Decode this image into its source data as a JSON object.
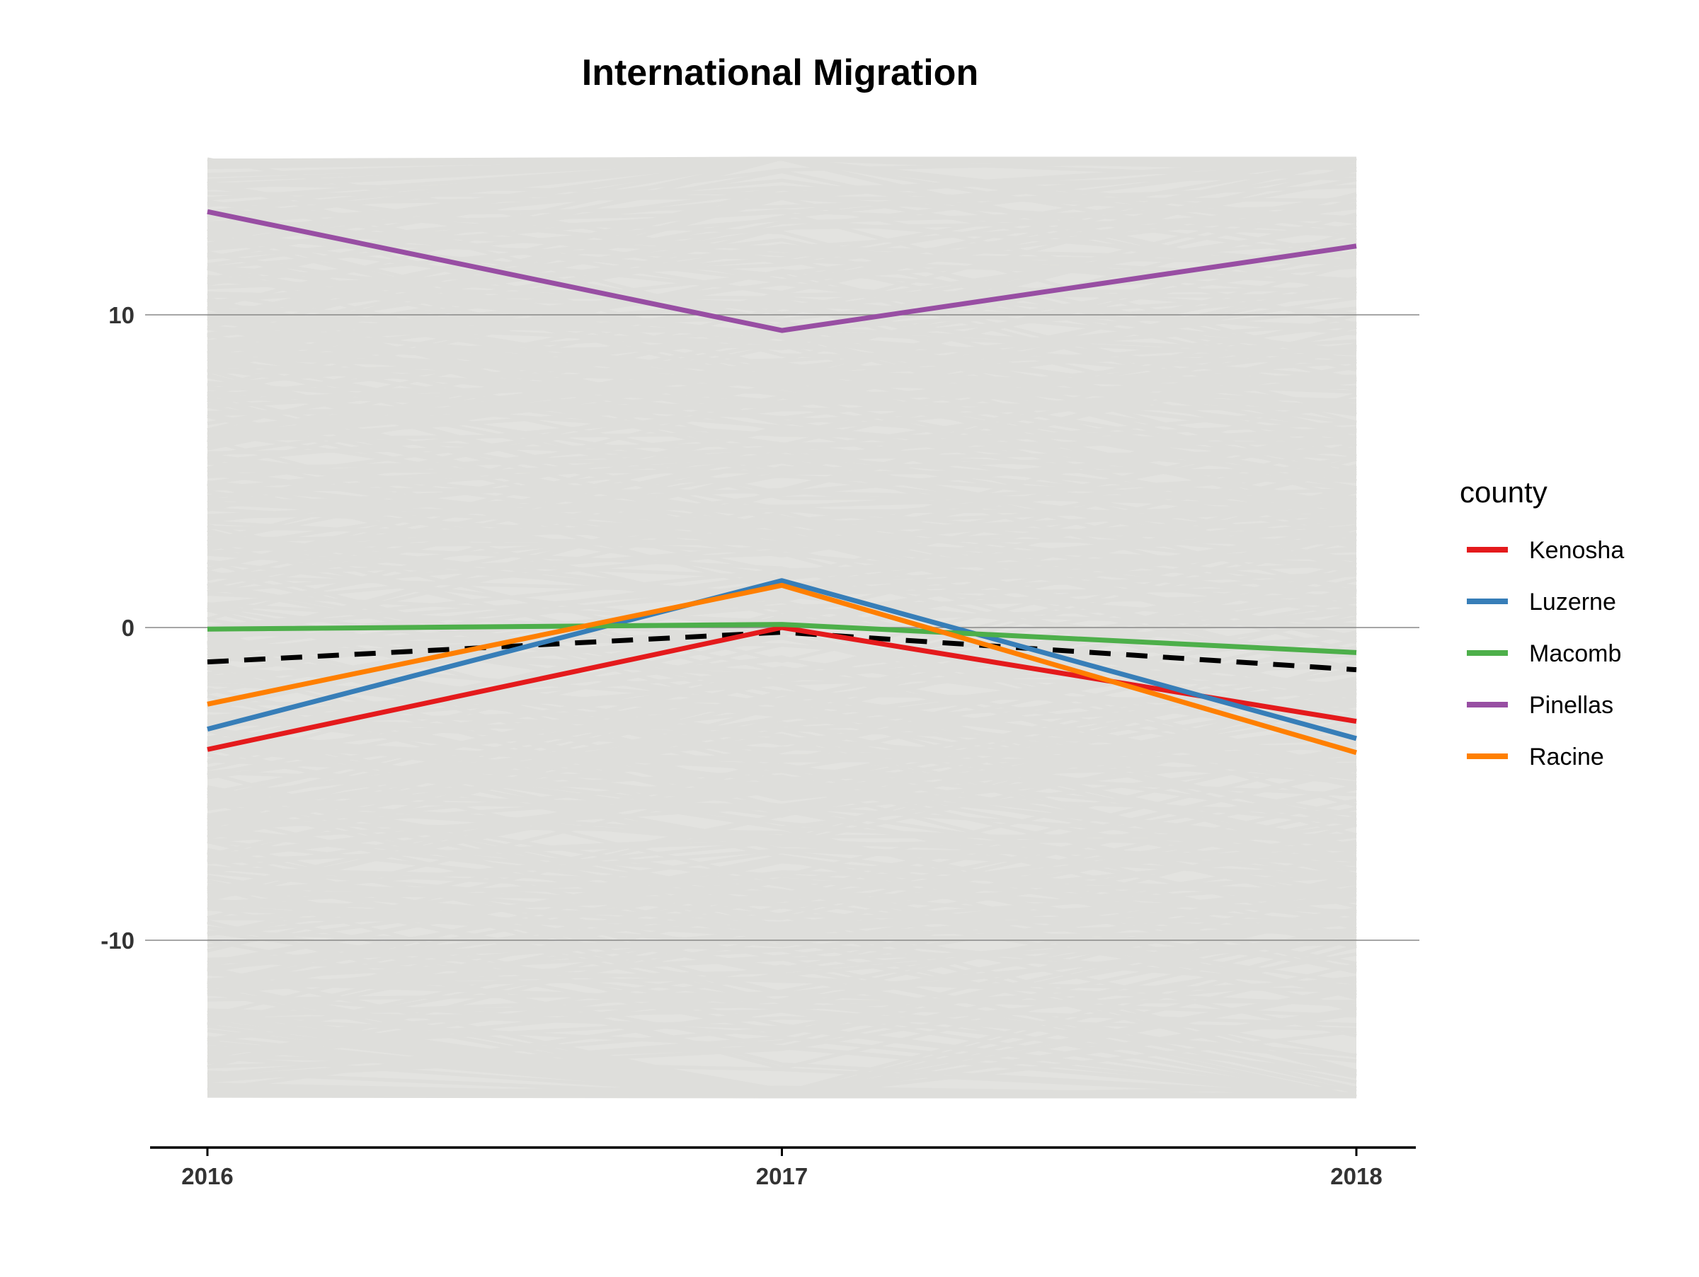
{
  "chart_data": {
    "type": "line",
    "title": "International Migration",
    "xlabel": "",
    "ylabel": "",
    "x": [
      2016,
      2017,
      2018
    ],
    "x_tick_labels": [
      "2016",
      "2017",
      "2018"
    ],
    "y_ticks": [
      10,
      0,
      -10
    ],
    "y_tick_labels": [
      "10",
      "0",
      "-10"
    ],
    "ylim": [
      -16.5,
      15.2
    ],
    "grid": "major y only",
    "background": {
      "description": "many light gray county lines",
      "color": "#dededb",
      "range": [
        -15,
        15
      ]
    },
    "mean_line": {
      "style": "dashed",
      "color": "#000000",
      "values": [
        -1.1,
        -0.15,
        -1.35
      ]
    },
    "legend": {
      "title": "county",
      "position": "right"
    },
    "series": [
      {
        "name": "Kenosha",
        "color": "#e41a1c",
        "values": [
          -3.9,
          0.0,
          -3.0
        ]
      },
      {
        "name": "Luzerne",
        "color": "#377eb8",
        "values": [
          -3.25,
          1.5,
          -3.55
        ]
      },
      {
        "name": "Macomb",
        "color": "#4daf4a",
        "values": [
          -0.05,
          0.1,
          -0.8
        ]
      },
      {
        "name": "Pinellas",
        "color": "#984ea3",
        "values": [
          13.3,
          9.5,
          12.2
        ]
      },
      {
        "name": "Racine",
        "color": "#ff7f00",
        "values": [
          -2.45,
          1.35,
          -4.0
        ]
      }
    ]
  }
}
